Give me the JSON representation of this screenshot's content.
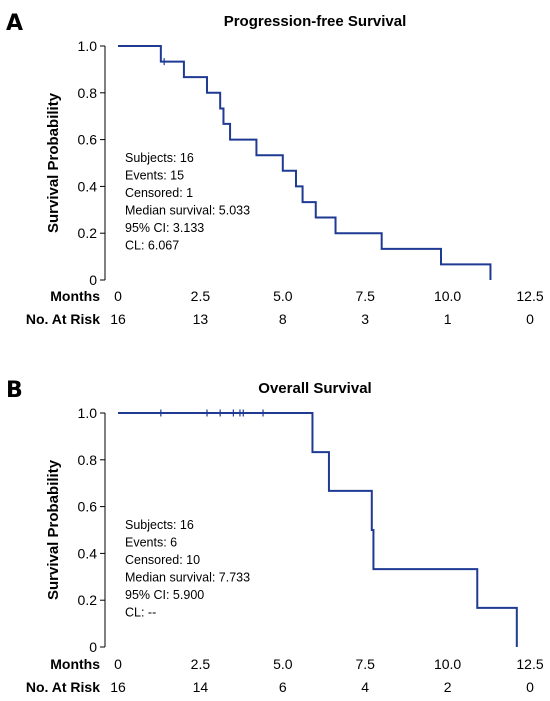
{
  "chart_data": [
    {
      "type": "line",
      "panel_label": "A",
      "title": "Progression-free Survival",
      "ylabel": "Survival Probability",
      "xlabel": "Months",
      "xlim": [
        0,
        12.5
      ],
      "ylim": [
        0,
        1.0
      ],
      "x_ticks": [
        0,
        2.5,
        5.0,
        7.5,
        10.0,
        12.5
      ],
      "x_tick_labels": [
        "0",
        "2.5",
        "5.0",
        "7.5",
        "10.0",
        "12.5"
      ],
      "y_ticks": [
        0,
        0.2,
        0.4,
        0.6,
        0.8,
        1.0
      ],
      "y_tick_labels": [
        "0",
        "0.2",
        "0.4",
        "0.6",
        "0.8",
        "1.0"
      ],
      "series": [
        {
          "color": "#1f3a93",
          "steps": [
            [
              0,
              1.0
            ],
            [
              1.3,
              0.933
            ],
            [
              2.0,
              0.867
            ],
            [
              2.7,
              0.8
            ],
            [
              3.1,
              0.733
            ],
            [
              3.2,
              0.667
            ],
            [
              3.4,
              0.6
            ],
            [
              4.2,
              0.533
            ],
            [
              5.0,
              0.467
            ],
            [
              5.4,
              0.4
            ],
            [
              5.6,
              0.333
            ],
            [
              6.0,
              0.267
            ],
            [
              6.6,
              0.2
            ],
            [
              8.0,
              0.133
            ],
            [
              9.8,
              0.067
            ],
            [
              11.3,
              0.0
            ]
          ],
          "end_x": 11.3,
          "censored": [
            1.4
          ]
        }
      ],
      "stats_text": [
        "Subjects: 16",
        "Events: 15",
        "Censored: 1",
        "Median survival: 5.033",
        "95% CI: 3.133",
        "CL: 6.067"
      ],
      "risk_table": {
        "label": "No. At Risk",
        "times": [
          0,
          2.5,
          5.0,
          7.5,
          10.0,
          12.5
        ],
        "values": [
          "16",
          "13",
          "8",
          "3",
          "1",
          "0"
        ]
      }
    },
    {
      "type": "line",
      "panel_label": "B",
      "title": "Overall Survival",
      "ylabel": "Survival Probability",
      "xlabel": "Months",
      "xlim": [
        0,
        12.5
      ],
      "ylim": [
        0,
        1.0
      ],
      "x_ticks": [
        0,
        2.5,
        5.0,
        7.5,
        10.0,
        12.5
      ],
      "x_tick_labels": [
        "0",
        "2.5",
        "5.0",
        "7.5",
        "10.0",
        "12.5"
      ],
      "y_ticks": [
        0,
        0.2,
        0.4,
        0.6,
        0.8,
        1.0
      ],
      "y_tick_labels": [
        "0",
        "0.2",
        "0.4",
        "0.6",
        "0.8",
        "1.0"
      ],
      "series": [
        {
          "color": "#1f3a93",
          "steps": [
            [
              0,
              1.0
            ],
            [
              5.9,
              0.833
            ],
            [
              6.4,
              0.667
            ],
            [
              7.7,
              0.5
            ],
            [
              7.75,
              0.333
            ],
            [
              10.9,
              0.167
            ],
            [
              12.1,
              0.0
            ]
          ],
          "end_x": 12.1,
          "censored": [
            1.3,
            2.7,
            3.1,
            3.5,
            3.7,
            3.8,
            4.4
          ]
        }
      ],
      "stats_text": [
        "Subjects: 16",
        "Events: 6",
        "Censored: 10",
        "Median survival: 7.733",
        "95% CI: 5.900",
        "CL: --"
      ],
      "risk_table": {
        "label": "No. At Risk",
        "times": [
          0,
          2.5,
          5.0,
          7.5,
          10.0,
          12.5
        ],
        "values": [
          "16",
          "14",
          "6",
          "4",
          "2",
          "0"
        ]
      }
    }
  ]
}
